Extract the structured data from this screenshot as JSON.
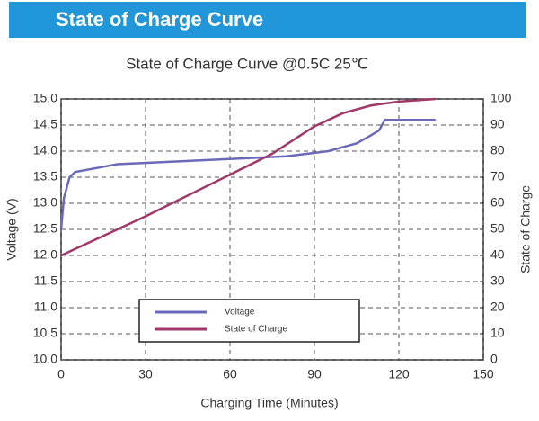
{
  "header": {
    "title": "State of Charge Curve"
  },
  "chart_data": {
    "type": "line",
    "title": "State of Charge Curve @0.5C 25℃",
    "x_label": "Charging Time (Minutes)",
    "y_label": "Voltage (V)",
    "y2_label": "State of Charge",
    "xlim": [
      0,
      150
    ],
    "xticks": [
      0,
      30,
      60,
      90,
      120,
      150
    ],
    "ylim": [
      10,
      15
    ],
    "yticks": [
      {
        "value": 10,
        "label": "10.0"
      },
      {
        "value": 10.5,
        "label": "10.5"
      },
      {
        "value": 11,
        "label": "11.0"
      },
      {
        "value": 11.5,
        "label": "11.5"
      },
      {
        "value": 12,
        "label": "12.0"
      },
      {
        "value": 12.5,
        "label": "12.5"
      },
      {
        "value": 13,
        "label": "13.0"
      },
      {
        "value": 13.5,
        "label": "13.5"
      },
      {
        "value": 14,
        "label": "14.0"
      },
      {
        "value": 14.5,
        "label": "14.5"
      },
      {
        "value": 15,
        "label": "15.0"
      }
    ],
    "y2lim": [
      0,
      100
    ],
    "y2ticks": [
      0,
      10,
      20,
      30,
      40,
      50,
      60,
      70,
      80,
      90,
      100
    ],
    "grid": true,
    "series": [
      {
        "name": "Voltage",
        "color": "#6a6ab8",
        "x": [
          0,
          1,
          3,
          5,
          20,
          40,
          60,
          80,
          95,
          105,
          110,
          113,
          115,
          133
        ],
        "values": [
          12.5,
          13.1,
          13.5,
          13.6,
          13.75,
          13.8,
          13.85,
          13.9,
          14.0,
          14.15,
          14.3,
          14.4,
          14.6,
          14.6
        ]
      },
      {
        "name": "State of Charge",
        "color": "#a0386a",
        "axis": "y2",
        "x": [
          0,
          30,
          60,
          75,
          85,
          90,
          100,
          110,
          120,
          133
        ],
        "values": [
          40,
          55,
          71,
          79,
          86,
          89.5,
          94.5,
          97.5,
          99,
          100
        ]
      }
    ]
  }
}
